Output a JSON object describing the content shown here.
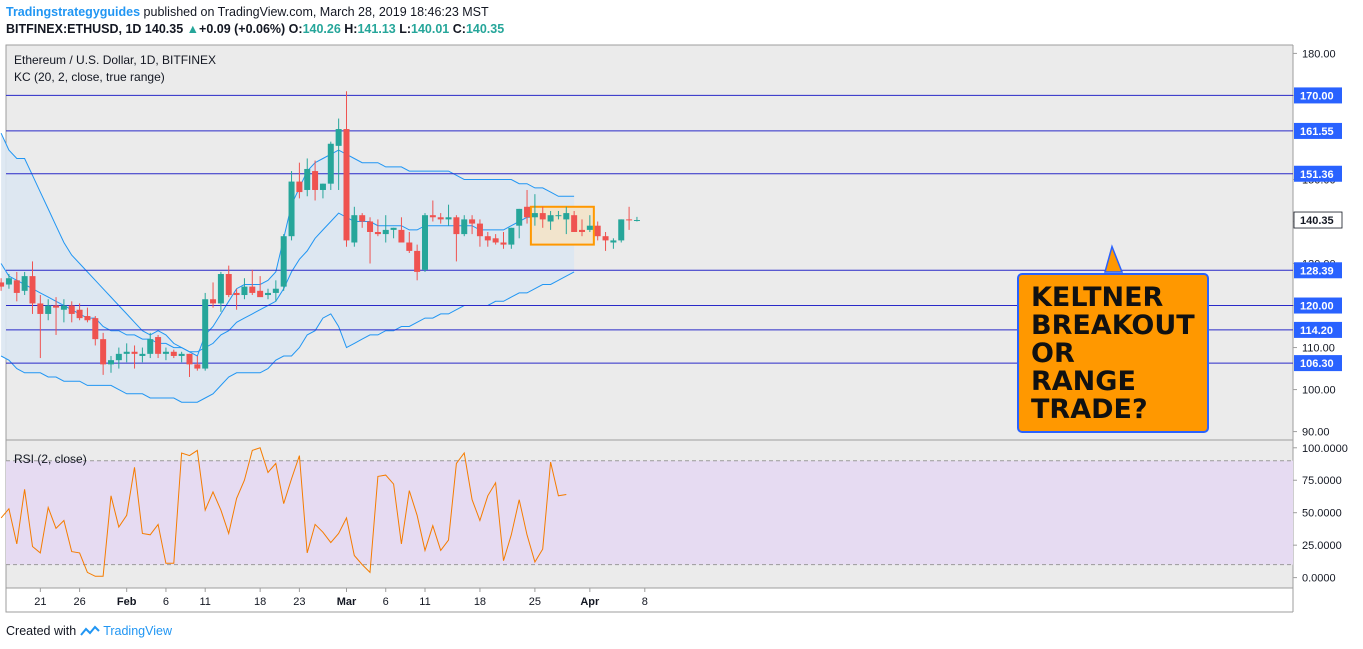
{
  "header": {
    "publisher": "Tradingstrategyguides",
    "published_text": " published on TradingView.com, March 28, 2019 18:46:23 MST",
    "symbol": "BITFINEX:ETHUSD, 1D",
    "price": "140.35",
    "change_arrow": "▲",
    "change": "+0.09 (+0.06%)",
    "o_label": "O:",
    "o": "140.26",
    "h_label": "H:",
    "h": "141.13",
    "l_label": "L:",
    "l": "140.01",
    "c_label": "C:",
    "c": "140.35"
  },
  "footer": {
    "created_with": "Created with",
    "brand": "TradingView"
  },
  "callout": {
    "lines": [
      "KELTNER",
      "BREAKOUT",
      "OR",
      "RANGE",
      "TRADE?"
    ]
  },
  "colors": {
    "bull": "#26a69a",
    "bear": "#ef5350",
    "band": "#2196f3",
    "band_fill": "#dbe7f2",
    "level": "#2929c8",
    "rsi": "#f57c00",
    "rsi_fill": "#e6dbf2",
    "box": "#ff9800",
    "panel_bg": "#ebebeb",
    "label_bg": "#2962ff"
  },
  "chart_data": [
    {
      "type": "candlestick",
      "title": "Ethereum / U.S. Dollar, 1D, BITFINEX",
      "indicator_label": "KC (20, 2, close, true range)",
      "ylim": [
        88,
        182
      ],
      "y_ticks": [
        90,
        100,
        110,
        120,
        130,
        140,
        150,
        170,
        180
      ],
      "x_ticks": [
        {
          "label": "21",
          "day": 5
        },
        {
          "label": "26",
          "day": 10
        },
        {
          "label": "Feb",
          "day": 16
        },
        {
          "label": "6",
          "day": 21
        },
        {
          "label": "11",
          "day": 26
        },
        {
          "label": "18",
          "day": 33
        },
        {
          "label": "23",
          "day": 38
        },
        {
          "label": "Mar",
          "day": 44
        },
        {
          "label": "6",
          "day": 49
        },
        {
          "label": "11",
          "day": 54
        },
        {
          "label": "18",
          "day": 61
        },
        {
          "label": "25",
          "day": 68
        },
        {
          "label": "Apr",
          "day": 75
        },
        {
          "label": "8",
          "day": 82
        }
      ],
      "horizontal_levels": [
        170.0,
        161.55,
        151.36,
        128.39,
        120.0,
        114.2,
        106.3
      ],
      "level_labels": [
        "170.00",
        "161.55",
        "151.36",
        "128.39",
        "120.00",
        "114.20",
        "106.30"
      ],
      "last_price": 140.35,
      "last_price_label": "140.35",
      "candles_ohlc": [
        [
          125.5,
          126.5,
          123.5,
          124.5
        ],
        [
          125.0,
          127.5,
          124.0,
          126.5
        ],
        [
          126.0,
          128.0,
          121.0,
          123.0
        ],
        [
          123.5,
          128.0,
          122.5,
          127.0
        ],
        [
          127.0,
          130.5,
          118.0,
          120.5
        ],
        [
          120.5,
          122.5,
          107.5,
          118.0
        ],
        [
          118.0,
          121.5,
          116.5,
          120.0
        ],
        [
          120.0,
          122.0,
          113.0,
          119.5
        ],
        [
          119.0,
          121.5,
          116.0,
          120.0
        ],
        [
          120.0,
          121.0,
          116.0,
          118.0
        ],
        [
          119.0,
          120.5,
          116.5,
          117.0
        ],
        [
          117.5,
          119.5,
          116.0,
          116.5
        ],
        [
          117.0,
          117.5,
          110.5,
          112.0
        ],
        [
          112.0,
          113.5,
          103.5,
          106.0
        ],
        [
          106.0,
          108.0,
          104.0,
          107.0
        ],
        [
          107.0,
          110.0,
          105.0,
          108.5
        ],
        [
          108.5,
          111.0,
          106.5,
          109.0
        ],
        [
          109.0,
          110.5,
          105.0,
          108.5
        ],
        [
          108.0,
          110.0,
          106.5,
          108.5
        ],
        [
          108.5,
          113.5,
          107.5,
          112.0
        ],
        [
          112.5,
          113.0,
          107.5,
          108.5
        ],
        [
          108.5,
          110.0,
          107.0,
          109.0
        ],
        [
          109.0,
          109.5,
          107.5,
          108.0
        ],
        [
          108.0,
          109.0,
          106.5,
          108.5
        ],
        [
          108.5,
          108.5,
          103.0,
          106.0
        ],
        [
          106.0,
          108.0,
          104.5,
          105.0
        ],
        [
          105.0,
          123.0,
          104.5,
          121.5
        ],
        [
          121.5,
          125.5,
          119.5,
          120.5
        ],
        [
          120.5,
          128.0,
          118.5,
          127.5
        ],
        [
          127.5,
          129.5,
          122.0,
          122.5
        ],
        [
          123.0,
          124.0,
          119.0,
          122.5
        ],
        [
          122.5,
          126.5,
          121.5,
          124.5
        ],
        [
          124.5,
          128.5,
          122.5,
          123.0
        ],
        [
          123.5,
          127.0,
          122.5,
          122.0
        ],
        [
          122.5,
          124.0,
          121.5,
          123.0
        ],
        [
          123.0,
          126.0,
          121.0,
          124.0
        ],
        [
          124.5,
          137.0,
          123.5,
          136.5
        ],
        [
          136.5,
          152.0,
          135.5,
          149.5
        ],
        [
          149.5,
          154.0,
          145.5,
          147.0
        ],
        [
          147.5,
          155.0,
          146.0,
          152.5
        ],
        [
          152.0,
          154.5,
          145.0,
          147.5
        ],
        [
          147.5,
          149.0,
          145.5,
          149.0
        ],
        [
          149.0,
          159.0,
          147.5,
          158.5
        ],
        [
          158.0,
          164.5,
          147.5,
          162.0
        ],
        [
          162.0,
          171.0,
          134.0,
          135.5
        ],
        [
          135.0,
          143.5,
          134.0,
          141.5
        ],
        [
          141.5,
          142.0,
          138.5,
          140.0
        ],
        [
          140.0,
          141.0,
          130.0,
          137.5
        ],
        [
          137.5,
          140.5,
          136.5,
          137.0
        ],
        [
          137.0,
          141.5,
          135.0,
          138.0
        ],
        [
          138.0,
          138.5,
          136.0,
          138.5
        ],
        [
          138.0,
          141.0,
          136.5,
          135.0
        ],
        [
          135.0,
          137.5,
          132.5,
          133.0
        ],
        [
          133.0,
          134.5,
          126.0,
          128.0
        ],
        [
          128.5,
          142.0,
          128.0,
          141.5
        ],
        [
          141.5,
          145.0,
          140.0,
          141.0
        ],
        [
          141.0,
          142.0,
          139.5,
          140.5
        ],
        [
          140.5,
          144.0,
          139.0,
          141.0
        ],
        [
          141.0,
          141.5,
          130.5,
          137.0
        ],
        [
          137.0,
          141.5,
          136.5,
          140.5
        ],
        [
          140.5,
          141.5,
          137.0,
          139.5
        ],
        [
          139.5,
          140.5,
          134.0,
          136.5
        ],
        [
          136.5,
          137.5,
          134.0,
          135.5
        ],
        [
          136.0,
          137.0,
          134.5,
          135.0
        ],
        [
          135.0,
          137.5,
          133.5,
          134.5
        ],
        [
          134.5,
          138.5,
          133.5,
          138.5
        ],
        [
          139.0,
          143.0,
          136.0,
          143.0
        ],
        [
          143.5,
          147.5,
          139.5,
          141.0
        ],
        [
          141.0,
          146.5,
          139.0,
          142.0
        ],
        [
          142.0,
          143.5,
          138.5,
          140.5
        ],
        [
          140.0,
          142.5,
          138.0,
          141.5
        ],
        [
          141.5,
          142.5,
          140.5,
          141.5
        ],
        [
          140.5,
          143.5,
          137.0,
          142.0
        ],
        [
          141.5,
          142.5,
          138.0,
          137.5
        ],
        [
          138.0,
          140.5,
          136.5,
          137.5
        ],
        [
          138.0,
          141.5,
          137.5,
          139.0
        ],
        [
          139.0,
          140.0,
          135.5,
          136.5
        ],
        [
          136.5,
          137.5,
          133.0,
          135.5
        ],
        [
          135.0,
          136.0,
          133.5,
          135.5
        ],
        [
          135.5,
          140.5,
          135.0,
          140.5
        ],
        [
          140.5,
          143.5,
          138.0,
          140.3
        ],
        [
          140.3,
          141.1,
          140.0,
          140.35
        ]
      ],
      "keltner_upper": [
        161,
        157,
        155,
        155,
        151,
        147,
        143,
        139,
        135,
        132,
        130,
        128,
        126,
        124,
        122,
        120,
        118,
        116,
        114,
        113,
        114,
        113,
        111,
        110,
        109,
        108,
        113,
        115,
        118,
        121,
        124,
        125,
        125,
        125,
        126,
        128,
        136,
        144,
        148,
        152,
        154,
        155,
        156,
        157,
        156,
        155,
        154,
        154,
        154,
        153,
        153,
        153,
        152,
        152,
        152,
        152,
        152,
        152,
        151,
        150,
        150,
        150,
        150,
        150,
        150,
        150,
        149,
        149,
        148,
        148,
        147,
        146,
        146,
        146
      ],
      "keltner_middle": [
        130,
        127,
        126,
        125,
        124,
        123,
        122,
        121,
        120,
        119,
        118,
        117,
        117,
        115,
        114,
        114,
        113,
        113,
        112,
        112,
        111,
        111,
        110,
        110,
        109,
        109,
        110,
        111,
        113,
        114,
        116,
        117,
        118,
        119,
        120,
        121,
        124,
        128,
        131,
        133,
        136,
        138,
        140,
        142,
        141,
        140,
        140,
        140,
        139,
        139,
        139,
        139,
        138,
        138,
        139,
        139,
        139,
        139,
        139,
        139,
        139,
        138,
        138,
        138,
        138,
        139,
        140,
        141,
        141,
        141,
        140,
        140,
        140,
        141
      ],
      "keltner_lower": [
        108,
        107,
        105,
        104,
        104,
        104,
        103,
        103,
        102,
        102,
        102,
        101,
        101,
        101,
        101,
        100,
        99,
        99,
        99,
        98,
        98,
        98,
        98,
        97,
        97,
        97,
        98,
        99,
        101,
        103,
        104,
        104,
        104,
        104,
        105,
        107,
        108,
        108,
        110,
        113,
        114,
        117,
        118,
        115,
        110,
        111,
        112,
        113,
        113,
        114,
        114,
        115,
        115,
        116,
        117,
        117,
        118,
        118,
        119,
        120,
        120,
        120,
        120,
        121,
        121,
        122,
        123,
        123,
        124,
        125,
        125,
        126,
        127,
        128
      ],
      "range_box": {
        "y_top": 143.5,
        "y_bottom": 134.5
      }
    },
    {
      "type": "line",
      "title": "RSI (2, close)",
      "ylim": [
        -8,
        106
      ],
      "y_ticks": [
        0,
        25,
        50,
        75,
        100
      ],
      "tick_labels": [
        "0.0000",
        "25.0000",
        "50.0000",
        "75.0000",
        "100.0000"
      ],
      "band": [
        10,
        90
      ],
      "values": [
        46,
        53,
        26,
        68,
        24,
        19,
        54,
        38,
        44,
        20,
        19,
        4,
        1,
        1,
        63,
        39,
        48,
        85,
        34,
        33,
        41,
        11,
        11,
        96,
        94,
        98,
        52,
        66,
        52,
        34,
        61,
        75,
        98,
        100,
        81,
        88,
        57,
        76,
        94,
        19,
        41,
        35,
        27,
        34,
        46,
        17,
        10,
        4,
        78,
        79,
        72,
        26,
        67,
        48,
        21,
        40,
        21,
        29,
        88,
        96,
        60,
        44,
        63,
        73,
        13,
        33,
        60,
        33,
        12,
        22,
        89,
        63,
        64
      ]
    }
  ]
}
